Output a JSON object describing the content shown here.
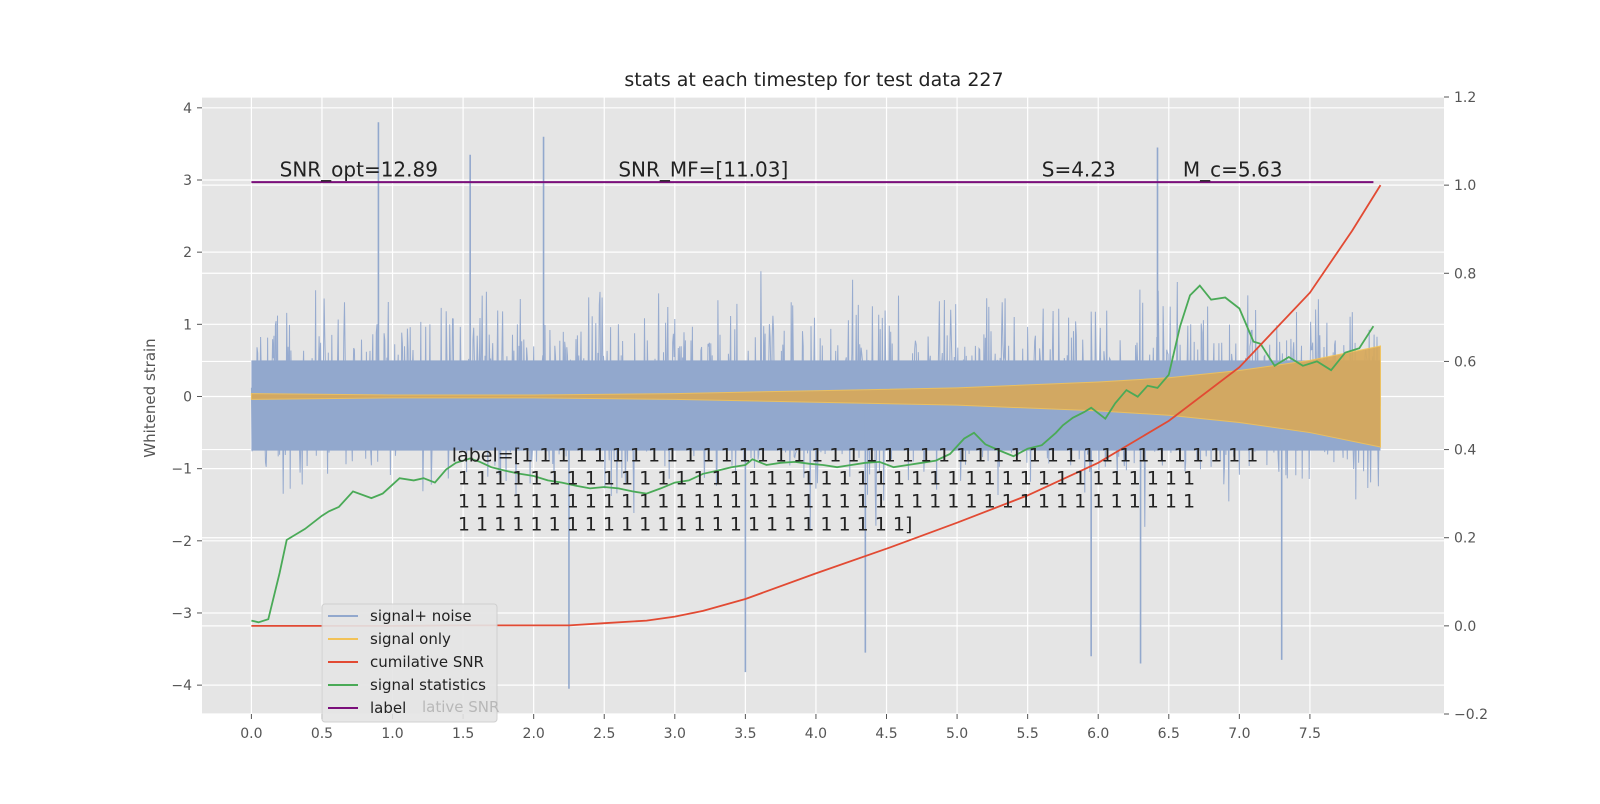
{
  "chart_data": {
    "type": "line",
    "title": "stats at each timestep for test data 227",
    "ylabel": "Whitened strain",
    "xlabel": "",
    "xlim": [
      -0.35,
      8.45
    ],
    "ylim_left": [
      -4.4,
      4.15
    ],
    "ylim_right": [
      -0.2,
      1.2
    ],
    "grid": true,
    "x_ticks": [
      "0.0",
      "0.5",
      "1.0",
      "1.5",
      "2.0",
      "2.5",
      "3.0",
      "3.5",
      "4.0",
      "4.5",
      "5.0",
      "5.5",
      "6.0",
      "6.5",
      "7.0",
      "7.5"
    ],
    "x_tick_values": [
      0,
      0.5,
      1,
      1.5,
      2,
      2.5,
      3,
      3.5,
      4,
      4.5,
      5,
      5.5,
      6,
      6.5,
      7,
      7.5
    ],
    "y_ticks_left": [
      "4",
      "3",
      "2",
      "1",
      "0",
      "−1",
      "−2",
      "−3",
      "−4"
    ],
    "y_tick_values_left": [
      4,
      3,
      2,
      1,
      0,
      -1,
      -2,
      -3,
      -4
    ],
    "y_ticks_right": [
      "1.2",
      "1.0",
      "0.8",
      "0.6",
      "0.4",
      "0.2",
      "0.0",
      "−0.2"
    ],
    "y_tick_values_right": [
      1.2,
      1.0,
      0.8,
      0.6,
      0.4,
      0.2,
      0.0,
      -0.2
    ],
    "annotations": [
      {
        "text": "SNR_opt=12.89",
        "x": 0.2,
        "y": 3.05
      },
      {
        "text": "SNR_MF=[11.03]",
        "x": 2.6,
        "y": 3.05
      },
      {
        "text": "S=4.23",
        "x": 5.6,
        "y": 3.05
      },
      {
        "text": "M_c=5.63",
        "x": 6.6,
        "y": 3.05
      }
    ],
    "label_text": {
      "lines": [
        "label=[1 1 1 1 1 1 1 1 1 1 1 1 1 1 1 1 1 1 1 1 1 1 1 1 1 1 1 1 1 1 1 1 1 1 1 1 1 1 1 1 1",
        " 1 1 1 1 1 1 1 1 1 1 1 1 1 1 1 1 1 1 1 1 1 1 1 1 1 1 1 1 1 1 1 1 1 1 1 1 1 1 1 1 1",
        " 1 1 1 1 1 1 1 1 1 1 1 1 1 1 1 1 1 1 1 1 1 1 1 1 1 1 1 1 1 1 1 1 1 1 1 1 1 1 1 1 1",
        " 1 1 1 1 1 1 1 1 1 1 1 1 1 1 1 1 1 1 1 1 1 1 1 1 1]"
      ],
      "x": 1.42,
      "y": -0.9
    },
    "legend": {
      "placement": "lower-left",
      "entries": [
        {
          "name": "signal+ noise",
          "color": "#92a8cd"
        },
        {
          "name": "signal only",
          "color": "#f2c257"
        },
        {
          "name": "cumilative SNR",
          "color": "#e24a33"
        },
        {
          "name": "signal statistics",
          "color": "#4aaa57"
        },
        {
          "name": "label",
          "color": "#7a0f7a"
        }
      ],
      "ghost_text": "lative SNR"
    },
    "series": [
      {
        "name": "signal+ noise",
        "axis": "left",
        "color": "#92a8cd",
        "note_style": "dense noise",
        "x_start": 0.0,
        "x_end": 8.0,
        "band_top_typical": 1.5,
        "band_bottom_typical": -1.7,
        "peaks": [
          {
            "x": 0.9,
            "y": 3.8
          },
          {
            "x": 2.07,
            "y": 3.6
          },
          {
            "x": 1.55,
            "y": 3.35
          },
          {
            "x": 6.42,
            "y": 3.45
          },
          {
            "x": 2.25,
            "y": -4.05
          },
          {
            "x": 3.5,
            "y": -3.82
          },
          {
            "x": 4.35,
            "y": -3.55
          },
          {
            "x": 6.3,
            "y": -3.7
          },
          {
            "x": 7.3,
            "y": -3.65
          },
          {
            "x": 5.95,
            "y": -3.6
          }
        ]
      },
      {
        "name": "signal only",
        "axis": "left",
        "color": "#f2c257",
        "note_style": "chirp envelope",
        "x": [
          0,
          1,
          2,
          3,
          4,
          5,
          6,
          6.5,
          7,
          7.5,
          8.0
        ],
        "amplitude": [
          0.04,
          0.02,
          0.02,
          0.04,
          0.08,
          0.12,
          0.2,
          0.26,
          0.36,
          0.5,
          0.7
        ]
      },
      {
        "name": "cumilative SNR",
        "axis": "right",
        "color": "#e24a33",
        "x": [
          0,
          0.5,
          1,
          1.5,
          2,
          2.25,
          2.5,
          2.8,
          3.0,
          3.2,
          3.5,
          4.0,
          4.5,
          5.0,
          5.5,
          6.0,
          6.5,
          7.0,
          7.5,
          7.8,
          8.0
        ],
        "values": [
          0.0,
          0.0,
          0.0,
          0.001,
          0.001,
          0.001,
          0.006,
          0.012,
          0.021,
          0.034,
          0.061,
          0.119,
          0.175,
          0.234,
          0.296,
          0.37,
          0.465,
          0.587,
          0.756,
          0.897,
          1.0
        ]
      },
      {
        "name": "signal statistics",
        "axis": "right",
        "color": "#4aaa57",
        "x": [
          0,
          0.05,
          0.12,
          0.2,
          0.25,
          0.38,
          0.5,
          0.55,
          0.62,
          0.72,
          0.85,
          0.93,
          1.05,
          1.15,
          1.22,
          1.3,
          1.38,
          1.45,
          1.55,
          1.62,
          1.7,
          1.8,
          1.9,
          2.0,
          2.1,
          2.2,
          2.3,
          2.4,
          2.5,
          2.6,
          2.7,
          2.8,
          2.9,
          3.0,
          3.1,
          3.2,
          3.3,
          3.4,
          3.5,
          3.55,
          3.65,
          3.75,
          3.85,
          3.95,
          4.05,
          4.15,
          4.25,
          4.35,
          4.45,
          4.55,
          4.65,
          4.75,
          4.85,
          4.95,
          5.05,
          5.12,
          5.2,
          5.3,
          5.4,
          5.5,
          5.6,
          5.7,
          5.75,
          5.82,
          5.9,
          5.95,
          6.05,
          6.12,
          6.2,
          6.28,
          6.35,
          6.42,
          6.5,
          6.58,
          6.65,
          6.72,
          6.8,
          6.9,
          7.0,
          7.1,
          7.15,
          7.25,
          7.35,
          7.45,
          7.55,
          7.65,
          7.75,
          7.85,
          7.95
        ],
        "values": [
          0.012,
          0.008,
          0.015,
          0.12,
          0.195,
          0.22,
          0.25,
          0.26,
          0.27,
          0.305,
          0.29,
          0.3,
          0.335,
          0.33,
          0.335,
          0.325,
          0.355,
          0.37,
          0.38,
          0.372,
          0.36,
          0.352,
          0.345,
          0.34,
          0.33,
          0.325,
          0.318,
          0.312,
          0.315,
          0.312,
          0.305,
          0.3,
          0.312,
          0.325,
          0.33,
          0.345,
          0.352,
          0.36,
          0.365,
          0.378,
          0.365,
          0.37,
          0.372,
          0.368,
          0.365,
          0.36,
          0.365,
          0.37,
          0.372,
          0.36,
          0.365,
          0.37,
          0.375,
          0.39,
          0.425,
          0.438,
          0.412,
          0.398,
          0.385,
          0.402,
          0.41,
          0.438,
          0.455,
          0.472,
          0.485,
          0.495,
          0.47,
          0.505,
          0.535,
          0.52,
          0.545,
          0.54,
          0.57,
          0.68,
          0.75,
          0.772,
          0.74,
          0.745,
          0.72,
          0.645,
          0.64,
          0.59,
          0.61,
          0.59,
          0.6,
          0.58,
          0.62,
          0.63,
          0.68
        ]
      },
      {
        "name": "label",
        "axis": "left",
        "color": "#7a0f7a",
        "x": [
          0,
          7.95
        ],
        "values": [
          2.97,
          2.97
        ]
      }
    ]
  }
}
